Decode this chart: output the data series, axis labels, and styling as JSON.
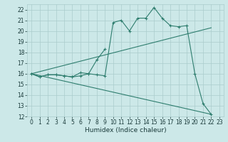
{
  "xlabel": "Humidex (Indice chaleur)",
  "background_color": "#cce8e8",
  "grid_color": "#aacccc",
  "line_color": "#2e7d6e",
  "xlim": [
    -0.5,
    23.5
  ],
  "ylim": [
    12,
    22.5
  ],
  "yticks": [
    12,
    13,
    14,
    15,
    16,
    17,
    18,
    19,
    20,
    21,
    22
  ],
  "xticks": [
    0,
    1,
    2,
    3,
    4,
    5,
    6,
    7,
    8,
    9,
    10,
    11,
    12,
    13,
    14,
    15,
    16,
    17,
    18,
    19,
    20,
    21,
    22,
    23
  ],
  "line1_x": [
    0,
    1,
    2,
    3,
    4,
    5,
    6,
    7,
    8,
    9,
    10,
    11,
    12,
    13,
    14,
    15,
    16,
    17,
    18,
    19,
    20,
    21,
    22
  ],
  "line1_y": [
    16,
    15.7,
    15.9,
    15.9,
    15.8,
    15.7,
    15.8,
    16.0,
    15.9,
    15.8,
    20.8,
    21.0,
    20.0,
    21.2,
    21.2,
    22.2,
    21.2,
    20.5,
    20.4,
    20.5,
    16.0,
    13.2,
    12.2
  ],
  "line2_x": [
    0,
    1,
    2,
    3,
    4,
    5,
    6,
    7,
    8,
    9
  ],
  "line2_y": [
    16,
    15.7,
    15.9,
    15.9,
    15.8,
    15.7,
    16.1,
    16.0,
    17.3,
    18.3
  ],
  "line3_x": [
    0,
    22
  ],
  "line3_y": [
    16,
    20.3
  ],
  "line4_x": [
    0,
    22
  ],
  "line4_y": [
    16,
    12.2
  ],
  "tick_fontsize": 5.5,
  "xlabel_fontsize": 6.5
}
